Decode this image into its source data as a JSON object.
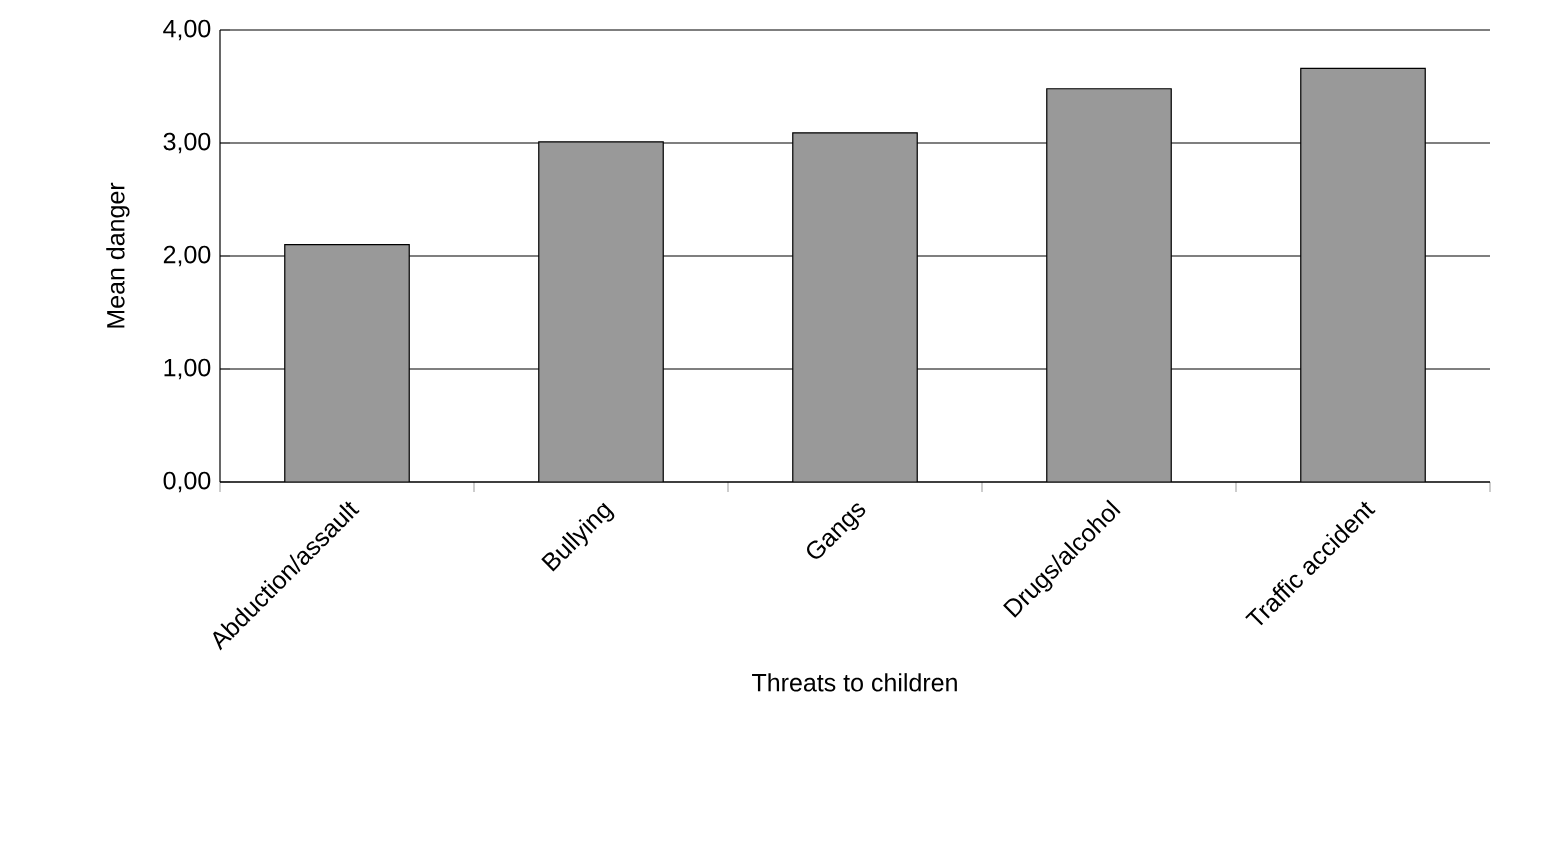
{
  "chart_data": {
    "type": "bar",
    "xlabel": "Threats to children",
    "ylabel": "Mean danger",
    "categories": [
      "Abduction/assault",
      "Bullying",
      "Gangs",
      "Drugs/alcohol",
      "Traffic accident"
    ],
    "values": [
      2.1,
      3.01,
      3.09,
      3.48,
      3.66
    ],
    "color": "#999999",
    "ylim": [
      0,
      4
    ],
    "yticks": [
      {
        "value": 0,
        "label": "0,00"
      },
      {
        "value": 1,
        "label": "1,00"
      },
      {
        "value": 2,
        "label": "2,00"
      },
      {
        "value": 3,
        "label": "3,00"
      },
      {
        "value": 4,
        "label": "4,00"
      }
    ],
    "grid": "y"
  }
}
